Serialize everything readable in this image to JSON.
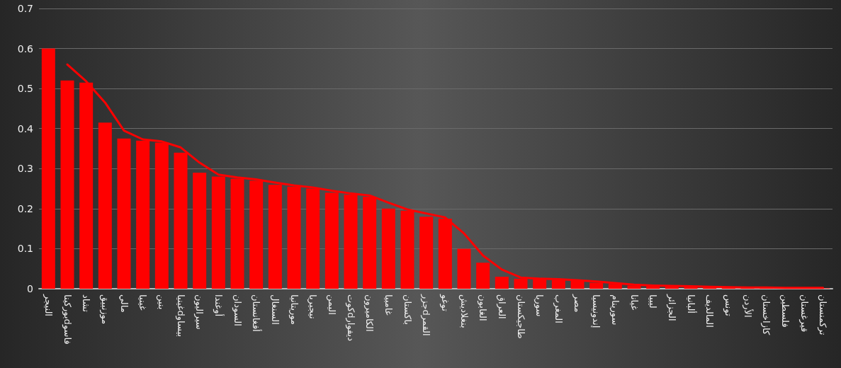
{
  "chart_data": {
    "type": "bar",
    "categories": [
      "النيجر",
      "بوركيناdفاسو",
      "تشاد",
      "موزنبيق",
      "مالي",
      "غينيا",
      "بنين",
      "غينياdبيساو",
      "سيراليون",
      "أوغندا",
      "السودان",
      "أفغانستان",
      "السنغال",
      "موريتانيا",
      "نيجيريا",
      "اليمن",
      "كوتdديفوار",
      "الكاميرون",
      "غامبيا",
      "باكستان",
      "جزرdالقمر",
      "توغو",
      "بنغلاديش",
      "الغابون",
      "العراق",
      "طاجيكستان",
      "سوريا",
      "المغرب",
      "مصر",
      "إندونيسيا",
      "سورينام",
      "غيانا",
      "ليبيا",
      "الجزائر",
      "ألبانيا",
      "المالديف",
      "تونس",
      "الأردن",
      "كازاخستان",
      "فلسطين",
      "قيرغستان",
      "تركمنستان"
    ],
    "series": [
      {
        "color": "#ff0000",
        "values": [
          0.6,
          0.52,
          0.515,
          0.415,
          0.375,
          0.37,
          0.365,
          0.34,
          0.29,
          0.28,
          0.275,
          0.27,
          0.26,
          0.255,
          0.25,
          0.24,
          0.235,
          0.23,
          0.2,
          0.195,
          0.18,
          0.175,
          0.1,
          0.065,
          0.03,
          0.025,
          0.025,
          0.022,
          0.02,
          0.015,
          0.012,
          0.008,
          0.007,
          0.006,
          0.005,
          0.004,
          0.003,
          0.003,
          0.002,
          0.002,
          0.002,
          0.001
        ]
      },
      {
        "type": "line",
        "color": "#ff0000",
        "values": [
          null,
          0.56,
          0.518,
          0.465,
          0.395,
          0.373,
          0.368,
          0.353,
          0.315,
          0.285,
          0.278,
          0.273,
          0.265,
          0.258,
          0.253,
          0.245,
          0.238,
          0.233,
          0.215,
          0.198,
          0.188,
          0.178,
          0.138,
          0.083,
          0.048,
          0.028,
          0.025,
          0.024,
          0.021,
          0.018,
          0.014,
          0.01,
          0.008,
          0.007,
          0.006,
          0.005,
          0.004,
          0.003,
          0.003,
          0.002,
          0.002,
          0.002
        ]
      }
    ],
    "ylim": [
      0,
      0.7
    ],
    "yticks": [
      0,
      0.1,
      0.2,
      0.3,
      0.4,
      0.5,
      0.6,
      0.7
    ],
    "grid": "y",
    "marker": "none",
    "line_style": "solid"
  }
}
